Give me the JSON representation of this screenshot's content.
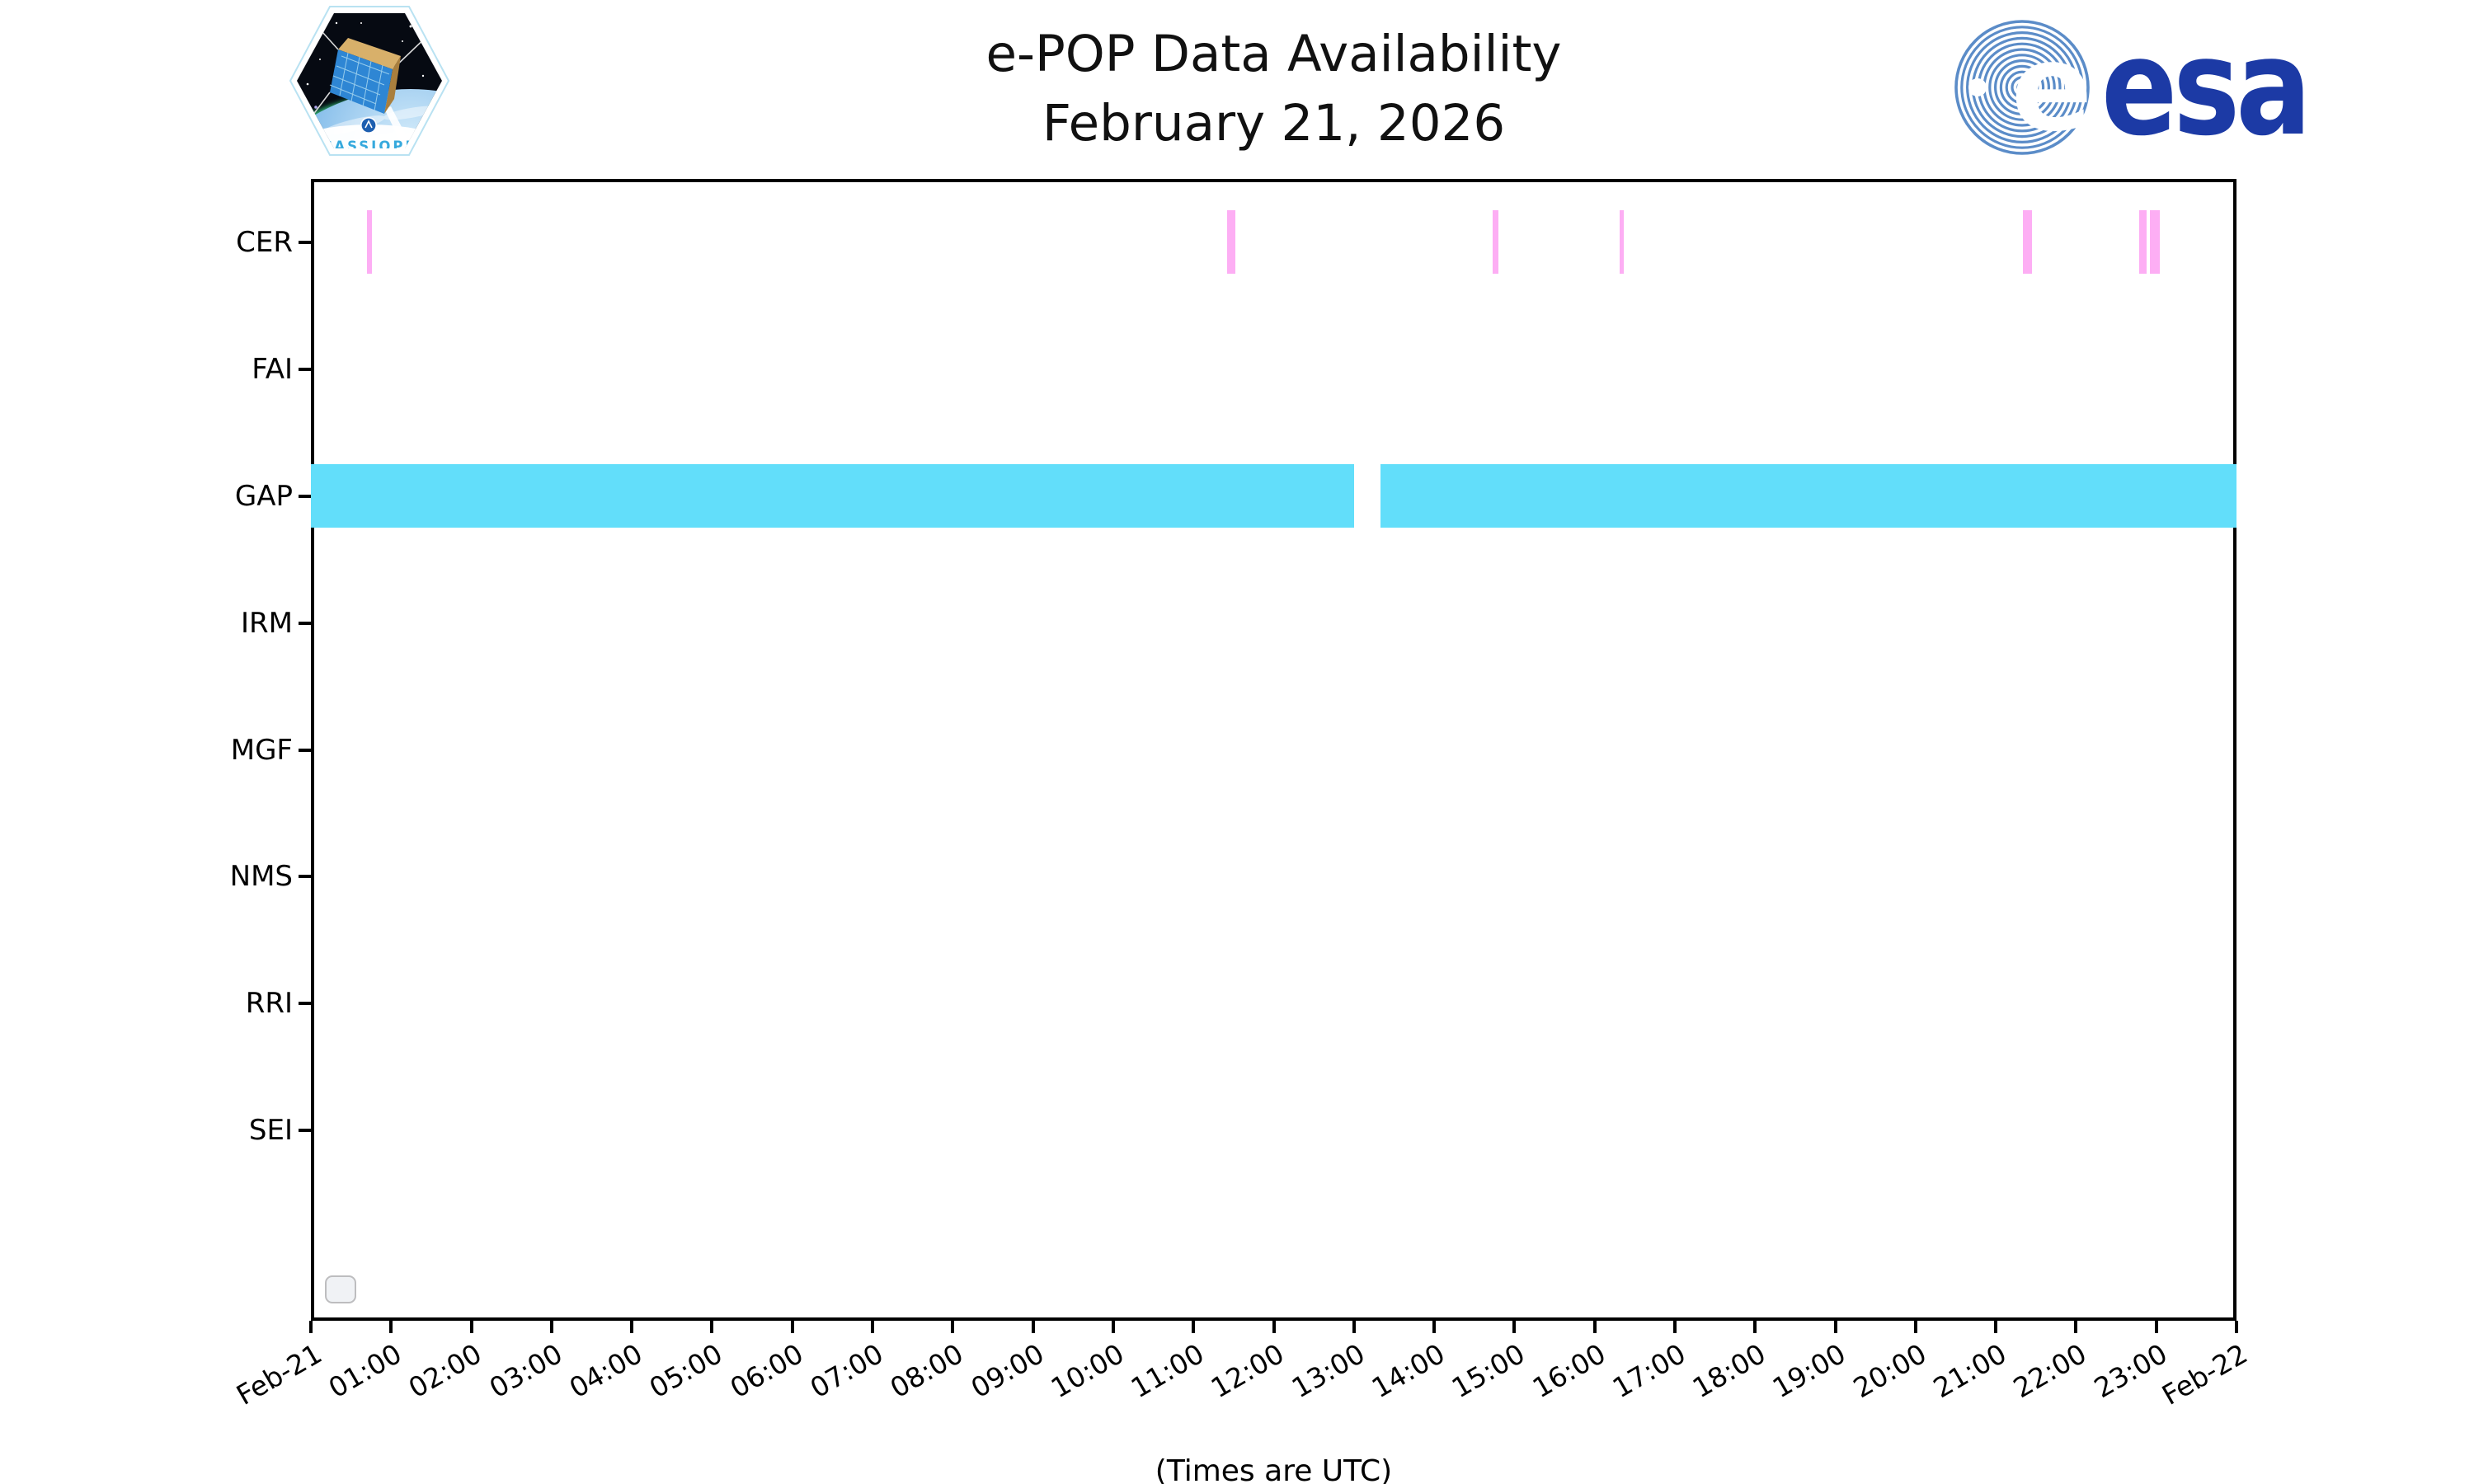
{
  "header": {
    "title_line1": "e-POP Data Availability",
    "title_line2": "February 21, 2026",
    "cassiope_patch_label": "CASSIOPE",
    "esa_logo_text": "esa",
    "esa_globe_letter": "e"
  },
  "chart_data": {
    "type": "bar",
    "subtype": "horizontal-availability-timeline",
    "title": "e-POP Data Availability",
    "subtitle": "February 21, 2026",
    "xlabel": "(Times are UTC)",
    "grid": false,
    "legend": {
      "visible": true,
      "entries": []
    },
    "x_axis": {
      "start_label": "Feb-21",
      "end_label": "Feb-22",
      "span_hours": 24,
      "tick_interval_hours": 1,
      "tick_rotation_deg": 30,
      "tick_labels": [
        "Feb-21",
        "01:00",
        "02:00",
        "03:00",
        "04:00",
        "05:00",
        "06:00",
        "07:00",
        "08:00",
        "09:00",
        "10:00",
        "11:00",
        "12:00",
        "13:00",
        "14:00",
        "15:00",
        "16:00",
        "17:00",
        "18:00",
        "19:00",
        "20:00",
        "21:00",
        "22:00",
        "23:00",
        "Feb-22"
      ]
    },
    "y_categories": [
      "CER",
      "FAI",
      "GAP",
      "IRM",
      "MGF",
      "NMS",
      "RRI",
      "SEI"
    ],
    "colors": {
      "cer_bar": "#FDAEF4",
      "gap_bar": "#62DEFA",
      "axis": "#000000"
    },
    "series": [
      {
        "instrument": "CER",
        "color": "#FDAEF4",
        "intervals_hours": [
          [
            0.7,
            0.76
          ],
          [
            11.42,
            11.52
          ],
          [
            14.73,
            14.8
          ],
          [
            16.31,
            16.36
          ],
          [
            21.34,
            21.45
          ],
          [
            22.79,
            22.88
          ],
          [
            22.92,
            23.04
          ]
        ],
        "intervals_utc": [
          "00:42-00:46",
          "11:25-11:31",
          "14:44-14:48",
          "16:19-16:22",
          "21:20-21:27",
          "22:47-22:53",
          "22:55-23:02"
        ]
      },
      {
        "instrument": "FAI",
        "color": null,
        "intervals_hours": [],
        "intervals_utc": []
      },
      {
        "instrument": "GAP",
        "color": "#62DEFA",
        "intervals_hours": [
          [
            0.0,
            13.0
          ],
          [
            13.33,
            24.0
          ]
        ],
        "intervals_utc": [
          "00:00-13:00",
          "13:20-24:00"
        ]
      },
      {
        "instrument": "IRM",
        "color": null,
        "intervals_hours": [],
        "intervals_utc": []
      },
      {
        "instrument": "MGF",
        "color": null,
        "intervals_hours": [],
        "intervals_utc": []
      },
      {
        "instrument": "NMS",
        "color": null,
        "intervals_hours": [],
        "intervals_utc": []
      },
      {
        "instrument": "RRI",
        "color": null,
        "intervals_hours": [],
        "intervals_utc": []
      },
      {
        "instrument": "SEI",
        "color": null,
        "intervals_hours": [],
        "intervals_utc": []
      }
    ]
  }
}
